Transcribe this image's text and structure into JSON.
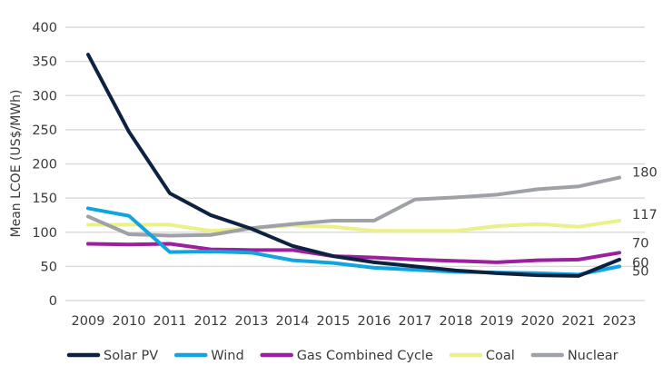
{
  "chart_data": {
    "type": "line",
    "title": "",
    "xlabel": "",
    "ylabel": "Mean LCOE (US$/MWh)",
    "ylim": [
      0,
      400
    ],
    "yticks": [
      0,
      50,
      100,
      150,
      200,
      250,
      300,
      350,
      400
    ],
    "grid": true,
    "legend_position": "bottom",
    "x": [
      "2009",
      "2010",
      "2011",
      "2012",
      "2013",
      "2014",
      "2015",
      "2016",
      "2017",
      "2018",
      "2019",
      "2020",
      "2021",
      "2023"
    ],
    "series": [
      {
        "name": "Solar PV",
        "color": "#0d2240",
        "values": [
          360,
          247,
          157,
          125,
          105,
          80,
          65,
          56,
          50,
          44,
          40,
          37,
          36,
          60
        ],
        "end_label": "60"
      },
      {
        "name": "Wind",
        "color": "#10a5e0",
        "values": [
          135,
          124,
          71,
          72,
          70,
          59,
          55,
          48,
          45,
          42,
          41,
          40,
          38,
          50
        ],
        "end_label": "50"
      },
      {
        "name": "Gas Combined Cycle",
        "color": "#9b1f9e",
        "values": [
          83,
          82,
          83,
          75,
          74,
          74,
          65,
          63,
          60,
          58,
          56,
          59,
          60,
          70
        ],
        "end_label": "70"
      },
      {
        "name": "Coal",
        "color": "#ecf08a",
        "values": [
          111,
          111,
          111,
          102,
          106,
          110,
          108,
          102,
          102,
          102,
          109,
          112,
          108,
          117
        ],
        "end_label": "117"
      },
      {
        "name": "Nuclear",
        "color": "#9ea2a6",
        "values": [
          123,
          97,
          95,
          96,
          106,
          112,
          117,
          117,
          148,
          151,
          155,
          163,
          167,
          180
        ],
        "end_label": "180"
      }
    ]
  }
}
